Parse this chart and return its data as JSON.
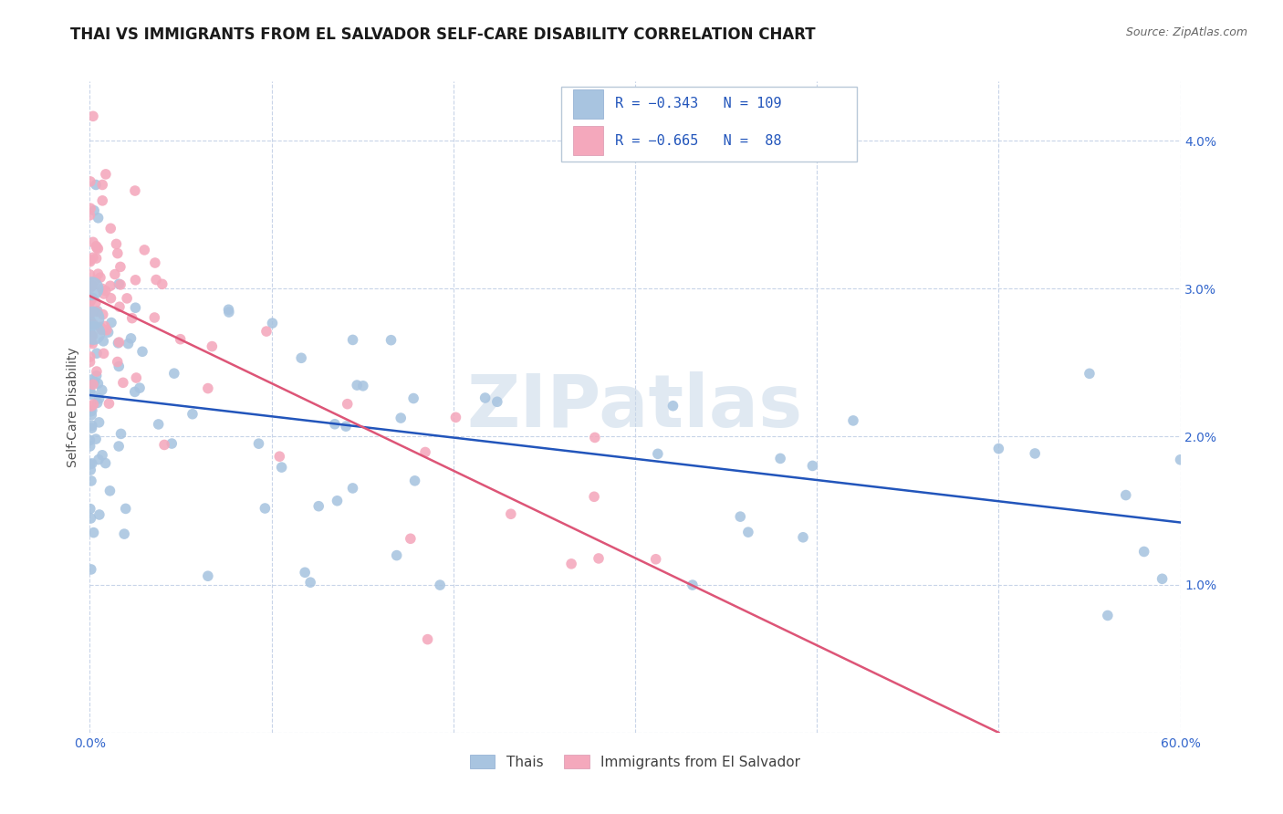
{
  "title": "THAI VS IMMIGRANTS FROM EL SALVADOR SELF-CARE DISABILITY CORRELATION CHART",
  "source": "Source: ZipAtlas.com",
  "ylabel": "Self-Care Disability",
  "watermark": "ZIPatlas",
  "xlim": [
    0.0,
    0.6
  ],
  "ylim": [
    0.0,
    0.044
  ],
  "xticks": [
    0.0,
    0.1,
    0.2,
    0.3,
    0.4,
    0.5,
    0.6
  ],
  "xtick_labels": [
    "0.0%",
    "",
    "",
    "",
    "",
    "",
    "60.0%"
  ],
  "ytick_vals": [
    0.0,
    0.01,
    0.02,
    0.03,
    0.04
  ],
  "ytick_labels": [
    "",
    "1.0%",
    "2.0%",
    "3.0%",
    "4.0%"
  ],
  "thai_color": "#a8c4e0",
  "salvador_color": "#f4a8bc",
  "thai_line_color": "#2255bb",
  "salvador_line_color": "#dd5577",
  "background_color": "#ffffff",
  "grid_color": "#c8d4e8",
  "title_fontsize": 12,
  "axis_label_fontsize": 10,
  "tick_fontsize": 10,
  "legend_fontsize": 11,
  "watermark_fontsize": 58,
  "watermark_color": "#c8d8e8",
  "thai_line_x0": 0.0,
  "thai_line_y0": 0.0228,
  "thai_line_x1": 0.6,
  "thai_line_y1": 0.0142,
  "salvador_line_x0": 0.0,
  "salvador_line_y0": 0.0295,
  "salvador_line_x1": 0.5,
  "salvador_line_y1": 0.0
}
